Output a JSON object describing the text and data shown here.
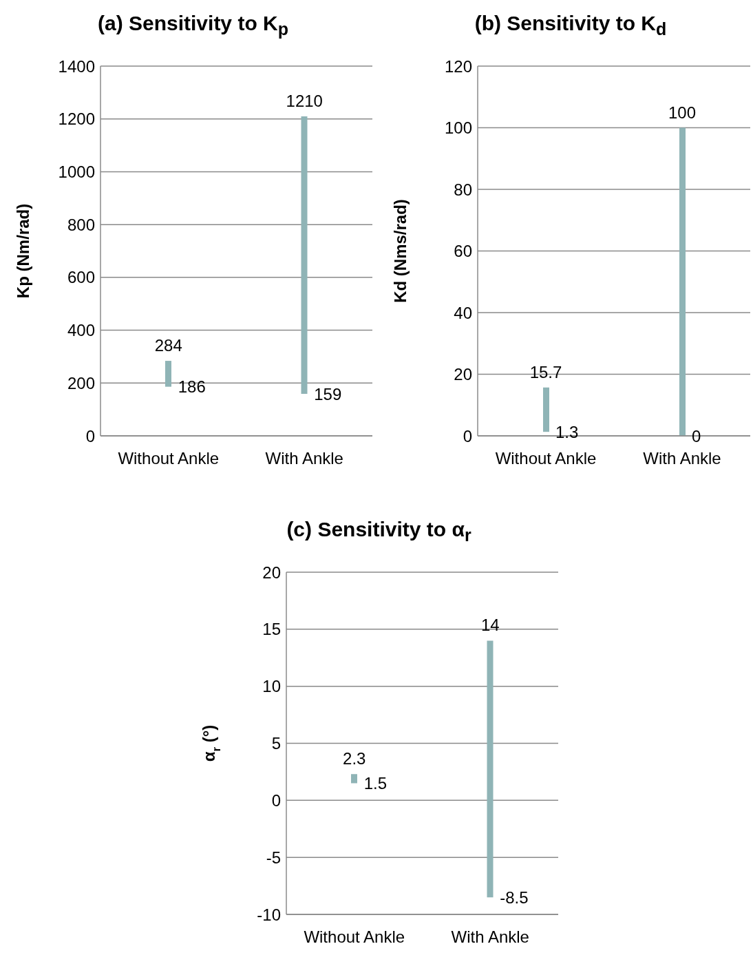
{
  "chart_data": [
    {
      "type": "bar",
      "title": "(a) Sensitivity to K$_{p}$",
      "ylabel": "Kp (Nm/rad)",
      "categories": [
        "Without Ankle",
        "With Ankle"
      ],
      "base": [
        186,
        159
      ],
      "values": [
        98,
        1051
      ],
      "color": "#8fb4b6",
      "ylim": [
        0,
        1400
      ],
      "yticks": [
        0,
        200,
        400,
        600,
        800,
        1000,
        1200,
        1400
      ],
      "grid": "y",
      "annotations": [
        {
          "text": "284",
          "x": "Without Ankle",
          "y": 284
        },
        {
          "text": "186",
          "x": "Without Ankle",
          "y": 186
        },
        {
          "text": "1210",
          "x": "With Ankle",
          "y": 1210
        },
        {
          "text": "159",
          "x": "With Ankle",
          "y": 159
        }
      ]
    },
    {
      "type": "bar",
      "title": "(b) Sensitivity to K$_{d}$",
      "ylabel": "Kd (Nms/rad)",
      "categories": [
        "Without Ankle",
        "With Ankle"
      ],
      "base": [
        1.3,
        0
      ],
      "values": [
        14.4,
        100
      ],
      "color": "#8fb4b6",
      "ylim": [
        0,
        120
      ],
      "yticks": [
        0,
        20,
        40,
        60,
        80,
        100,
        120
      ],
      "grid": "y",
      "annotations": [
        {
          "text": "15.7",
          "x": "Without Ankle",
          "y": 15.7
        },
        {
          "text": "1.3",
          "x": "Without Ankle",
          "y": 1.3
        },
        {
          "text": "100",
          "x": "With Ankle",
          "y": 100
        },
        {
          "text": "0",
          "x": "With Ankle",
          "y": 0
        }
      ]
    },
    {
      "type": "bar",
      "title": "(c) Sensitivity to α$_{r}$",
      "ylabel": "α$_{r}$ (°)",
      "categories": [
        "Without Ankle",
        "With Ankle"
      ],
      "base": [
        1.5,
        -8.5
      ],
      "values": [
        0.8,
        22.5
      ],
      "color": "#8fb4b6",
      "ylim": [
        -10,
        20
      ],
      "yticks": [
        -10,
        -5,
        0,
        5,
        10,
        15,
        20
      ],
      "grid": "y",
      "annotations": [
        {
          "text": "2.3",
          "x": "Without Ankle",
          "y": 2.3
        },
        {
          "text": "1.5",
          "x": "Without Ankle",
          "y": 1.5
        },
        {
          "text": "14",
          "x": "With Ankle",
          "y": 14
        },
        {
          "text": "-8.5",
          "x": "With Ankle",
          "y": -8.5
        }
      ]
    }
  ]
}
